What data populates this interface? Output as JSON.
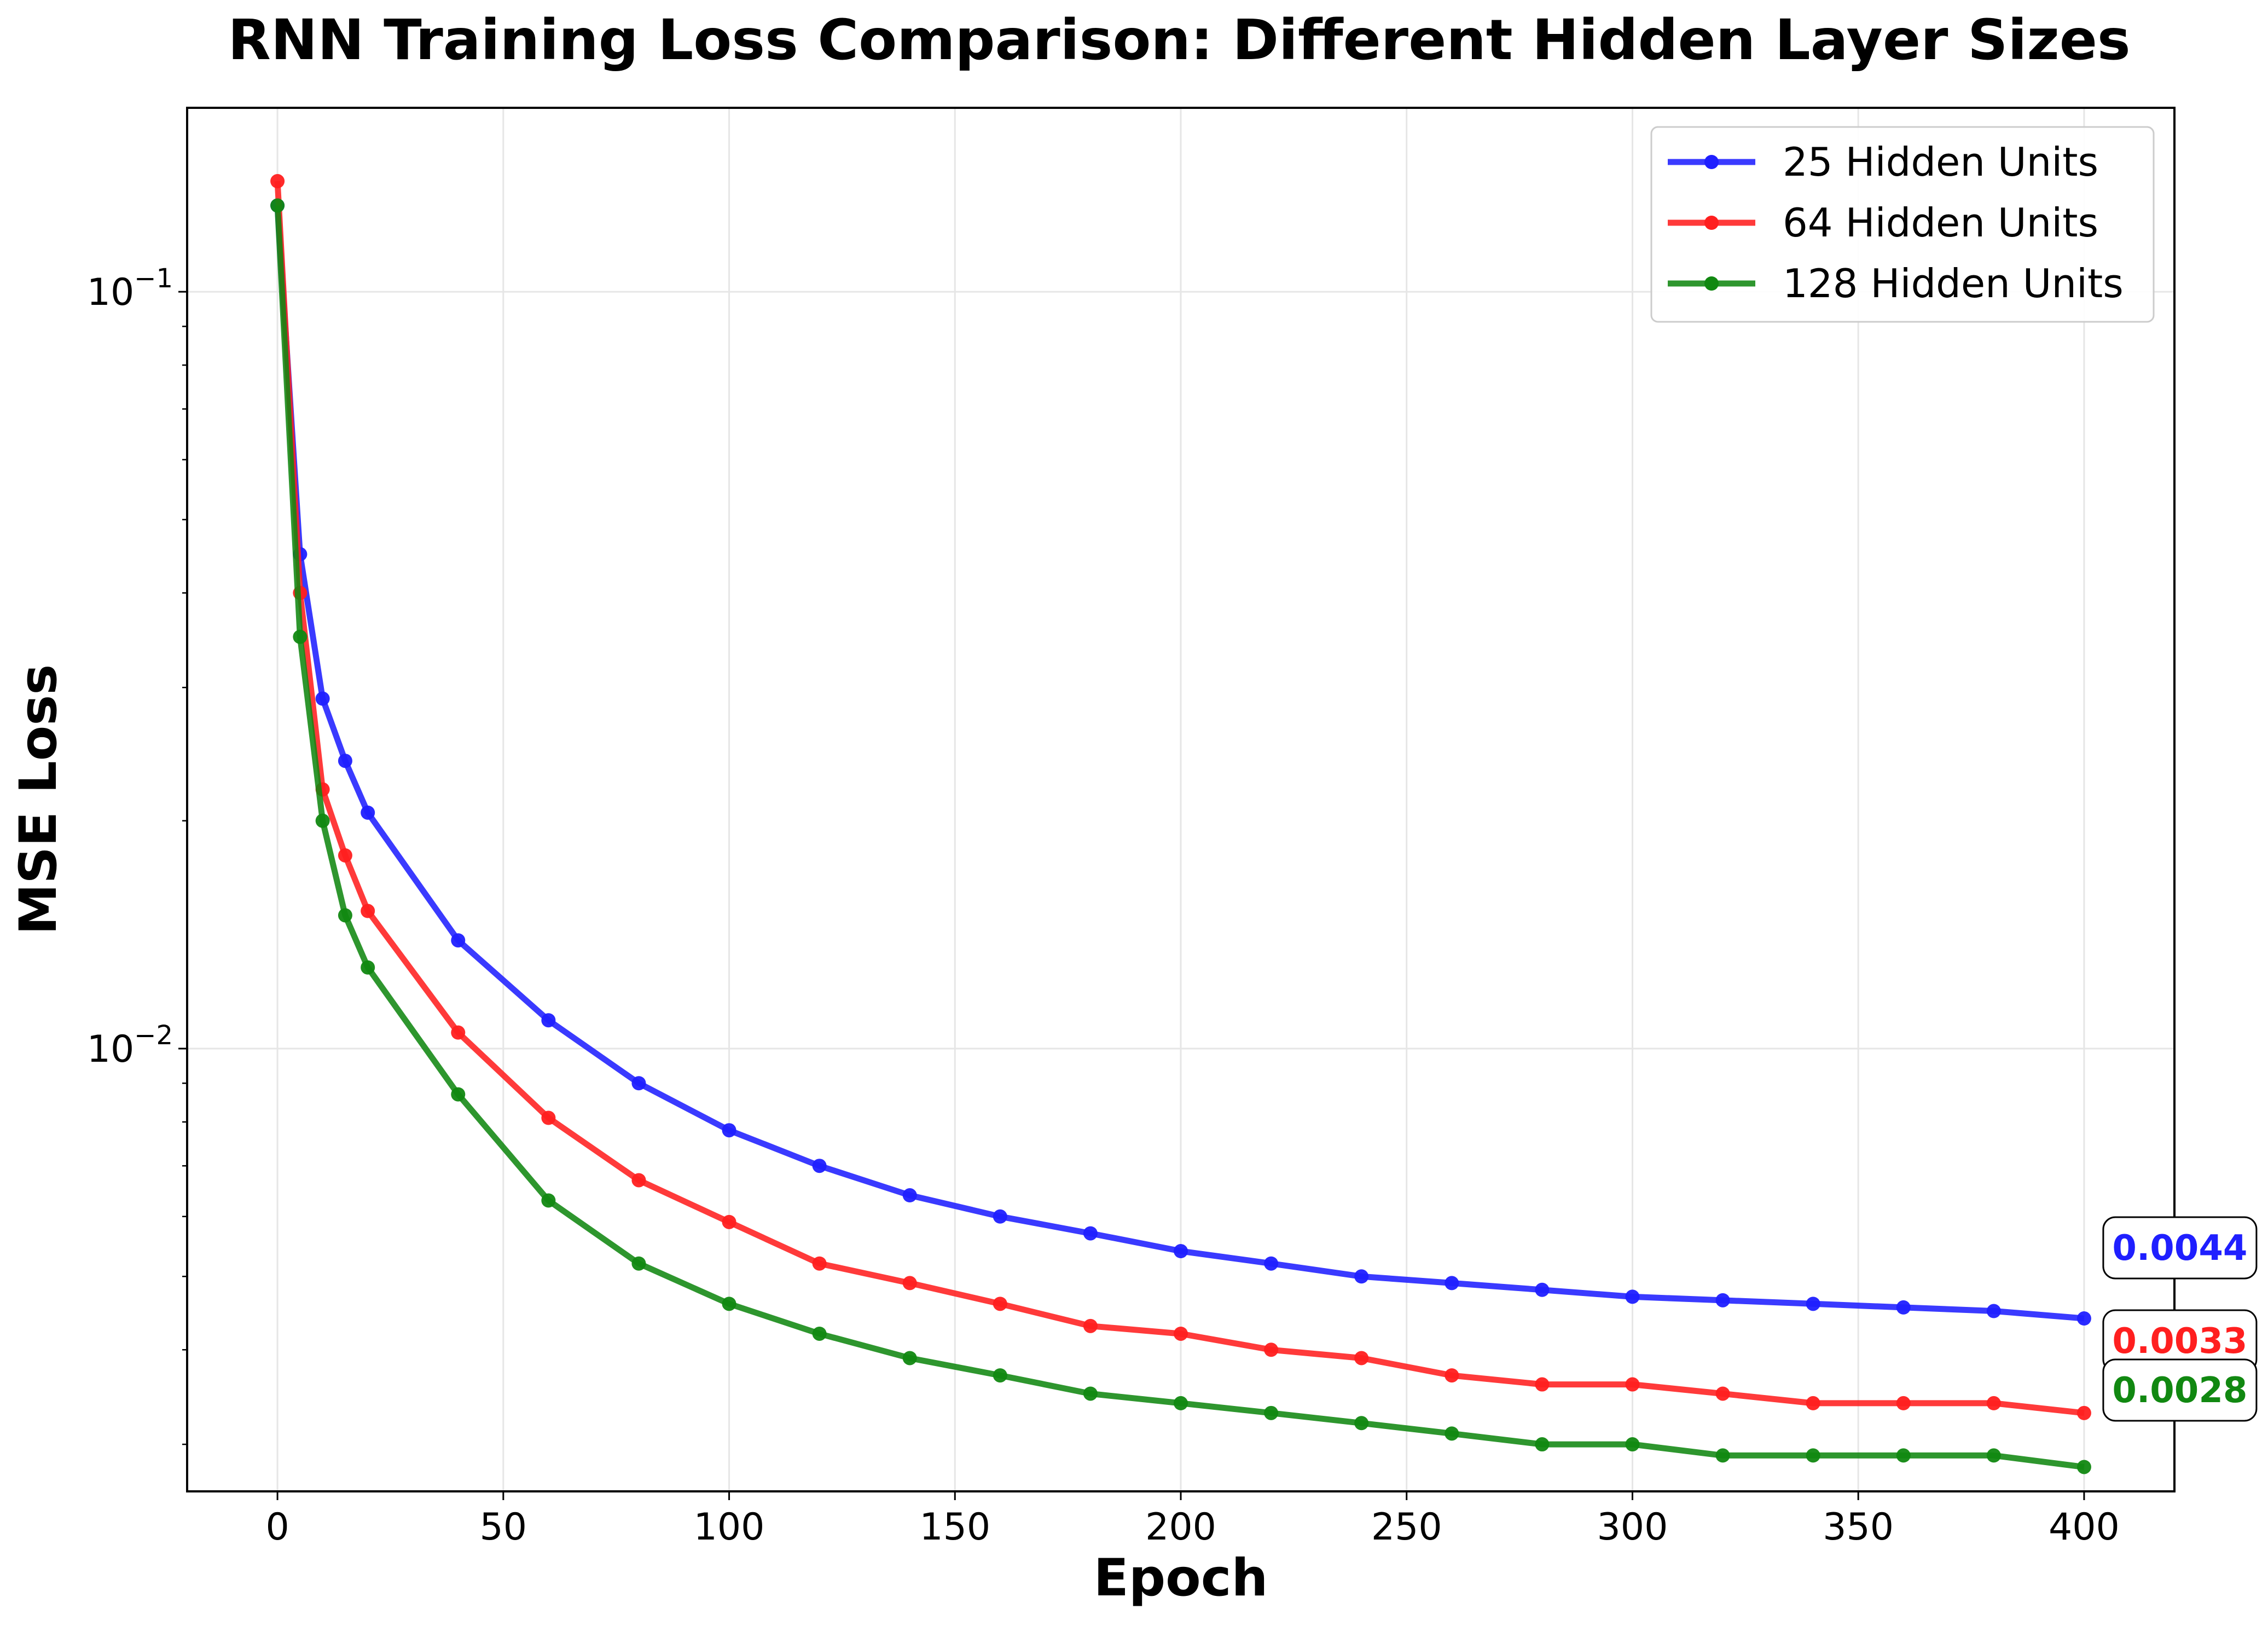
{
  "chart_data": {
    "type": "line",
    "title": "RNN Training Loss Comparison: Different Hidden Layer Sizes",
    "xlabel": "Epoch",
    "ylabel": "MSE Loss",
    "yscale": "log",
    "xlim": [
      -20,
      420
    ],
    "ylim": [
      0.0026,
      0.175
    ],
    "x_ticks": [
      0,
      50,
      100,
      150,
      200,
      250,
      300,
      350,
      400
    ],
    "y_ticks": [
      {
        "value": 0.1,
        "base": "10",
        "exp": "−1"
      },
      {
        "value": 0.01,
        "base": "10",
        "exp": "−2"
      }
    ],
    "grid": true,
    "legend_position": "top-right",
    "x": [
      0,
      5,
      10,
      15,
      20,
      40,
      60,
      80,
      100,
      120,
      140,
      160,
      180,
      200,
      220,
      240,
      260,
      280,
      300,
      320,
      340,
      360,
      380,
      400
    ],
    "series": [
      {
        "name": "25 Hidden Units",
        "color": "#1f1fff",
        "values": [
          0.13,
          0.045,
          0.029,
          0.024,
          0.0205,
          0.0139,
          0.0109,
          0.009,
          0.0078,
          0.007,
          0.0064,
          0.006,
          0.0057,
          0.0054,
          0.0052,
          0.005,
          0.0049,
          0.0048,
          0.0047,
          0.00465,
          0.0046,
          0.00455,
          0.0045,
          0.0044
        ],
        "end_label": "0.0044"
      },
      {
        "name": "64 Hidden Units",
        "color": "#ff1f1f",
        "values": [
          0.14,
          0.04,
          0.022,
          0.018,
          0.0152,
          0.0105,
          0.0081,
          0.0067,
          0.0059,
          0.0052,
          0.0049,
          0.0046,
          0.0043,
          0.0042,
          0.004,
          0.0039,
          0.0037,
          0.0036,
          0.0036,
          0.0035,
          0.0034,
          0.0034,
          0.0034,
          0.0033
        ],
        "end_label": "0.0033"
      },
      {
        "name": "128 Hidden Units",
        "color": "#118811",
        "values": [
          0.13,
          0.035,
          0.02,
          0.015,
          0.0128,
          0.0087,
          0.0063,
          0.0052,
          0.0046,
          0.0042,
          0.0039,
          0.0037,
          0.0035,
          0.0034,
          0.0033,
          0.0032,
          0.0031,
          0.003,
          0.003,
          0.0029,
          0.0029,
          0.0029,
          0.0029,
          0.0028
        ],
        "end_label": "0.0028"
      }
    ]
  }
}
